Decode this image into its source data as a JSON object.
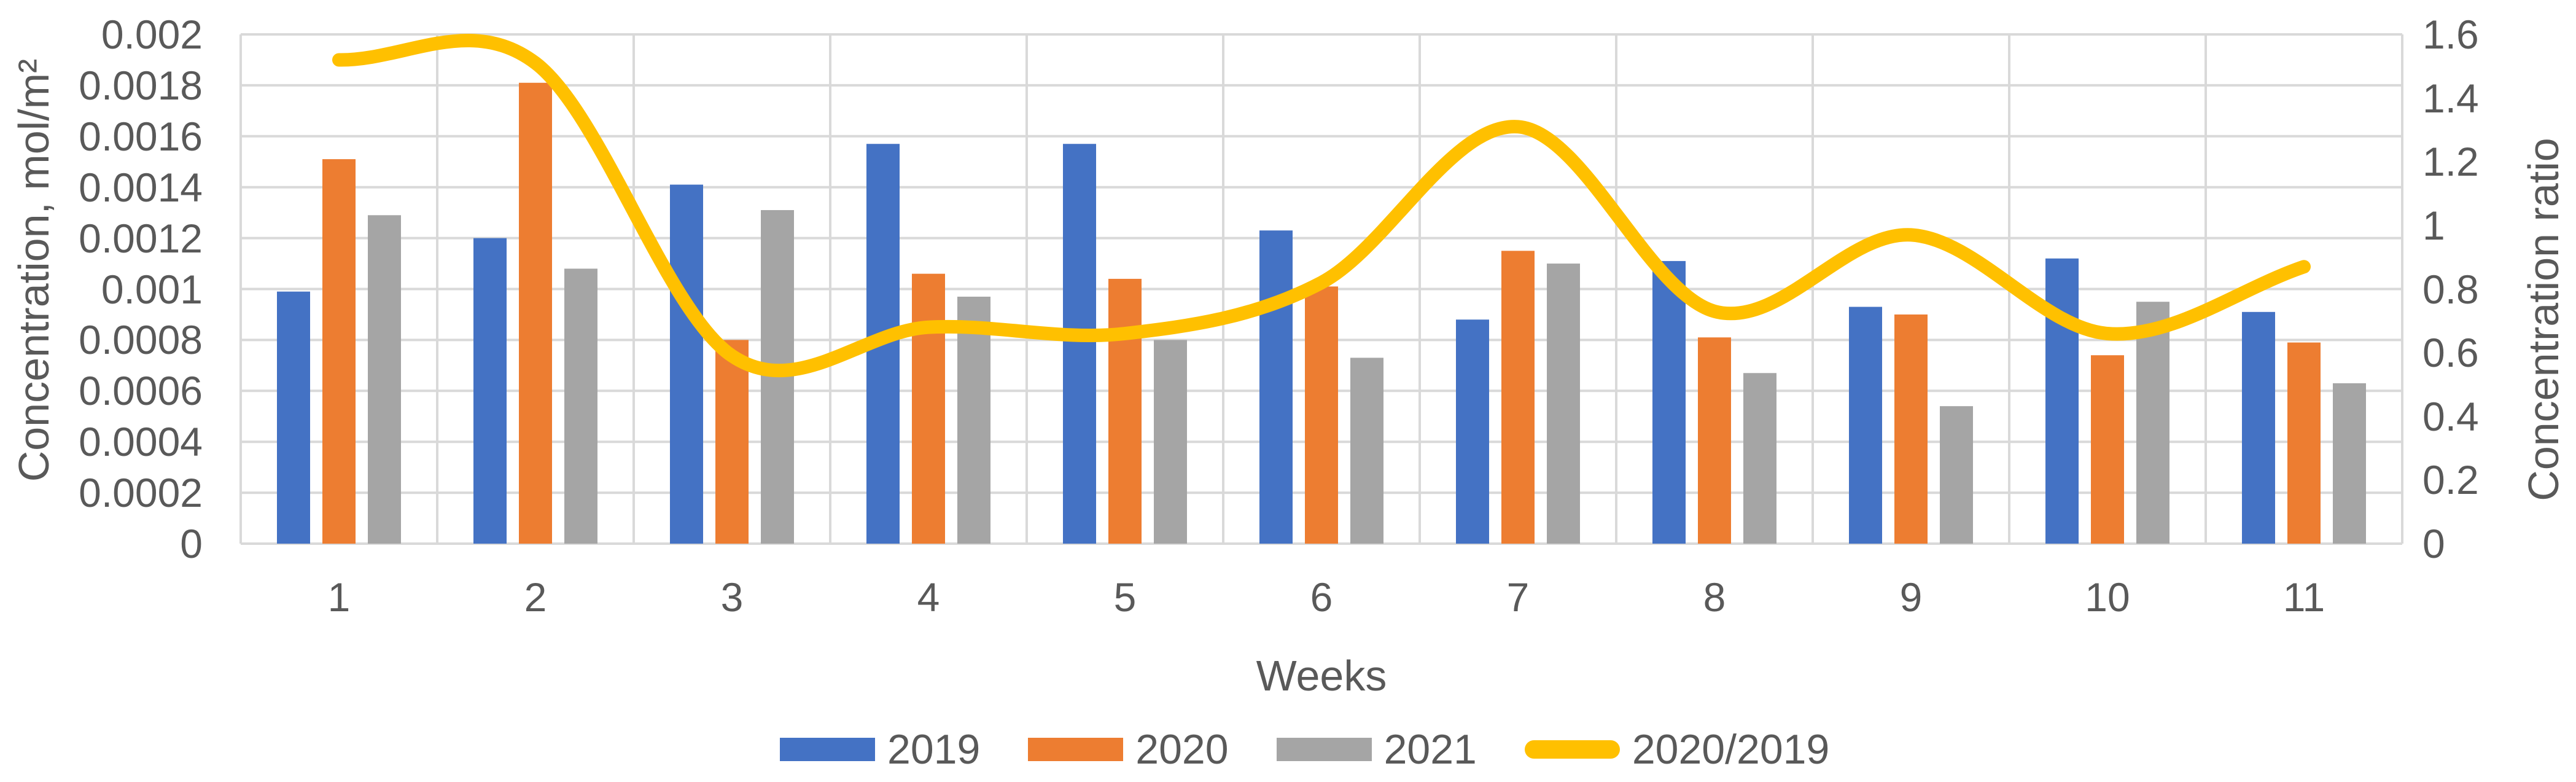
{
  "figure": {
    "background": "#FFFFFF",
    "text_color": "#595959",
    "gridline_color": "#D9D9D9"
  },
  "axes": {
    "left": {
      "title": "Concentration, mol/m²",
      "tick_labels": [
        "0.002",
        "0.0018",
        "0.0016",
        "0.0014",
        "0.0012",
        "0.001",
        "0.0008",
        "0.0006",
        "0.0004",
        "0.0002",
        "0"
      ]
    },
    "right": {
      "title": "Concentration ratio",
      "tick_labels": [
        "1.6",
        "1.4",
        "1.2",
        "1",
        "0.8",
        "0.6",
        "0.4",
        "0.2",
        "0"
      ]
    },
    "x": {
      "title": "Weeks",
      "tick_labels": [
        "1",
        "2",
        "3",
        "4",
        "5",
        "6",
        "7",
        "8",
        "9",
        "10",
        "11"
      ]
    }
  },
  "legend": {
    "items": [
      {
        "label": "2019",
        "color": "#4472C4",
        "marker": "rect"
      },
      {
        "label": "2020",
        "color": "#ED7D31",
        "marker": "rect"
      },
      {
        "label": "2021",
        "color": "#A5A5A5",
        "marker": "rect"
      },
      {
        "label": "2020/2019",
        "color": "#FFC000",
        "marker": "line"
      }
    ]
  },
  "chart_data": {
    "type": "combo-bar-line",
    "categories": [
      "1",
      "2",
      "3",
      "4",
      "5",
      "6",
      "7",
      "8",
      "9",
      "10",
      "11"
    ],
    "xlabel": "Weeks",
    "left_axis": {
      "label": "Concentration, mol/m²",
      "min": 0,
      "max": 0.002,
      "step": 0.0002
    },
    "right_axis": {
      "label": "Concentration ratio",
      "min": 0,
      "max": 1.6,
      "step": 0.2
    },
    "grid": true,
    "legend_position": "bottom",
    "bar_series": [
      {
        "name": "2019",
        "color": "#4472C4",
        "axis": "left",
        "values": [
          0.00099,
          0.0012,
          0.00141,
          0.00157,
          0.00157,
          0.00123,
          0.00088,
          0.00111,
          0.00093,
          0.00112,
          0.00091
        ]
      },
      {
        "name": "2020",
        "color": "#ED7D31",
        "axis": "left",
        "values": [
          0.00151,
          0.00181,
          0.0008,
          0.00106,
          0.00104,
          0.00101,
          0.00115,
          0.00081,
          0.0009,
          0.00074,
          0.00079
        ]
      },
      {
        "name": "2021",
        "color": "#A5A5A5",
        "axis": "left",
        "values": [
          0.00129,
          0.00108,
          0.00131,
          0.00097,
          0.0008,
          0.00073,
          0.0011,
          0.00067,
          0.00054,
          0.00095,
          0.00063
        ]
      }
    ],
    "line_series": [
      {
        "name": "2020/2019",
        "color": "#FFC000",
        "axis": "right",
        "smooth": true,
        "values": [
          1.52,
          1.51,
          0.59,
          0.68,
          0.66,
          0.82,
          1.31,
          0.73,
          0.97,
          0.66,
          0.87
        ]
      }
    ]
  }
}
